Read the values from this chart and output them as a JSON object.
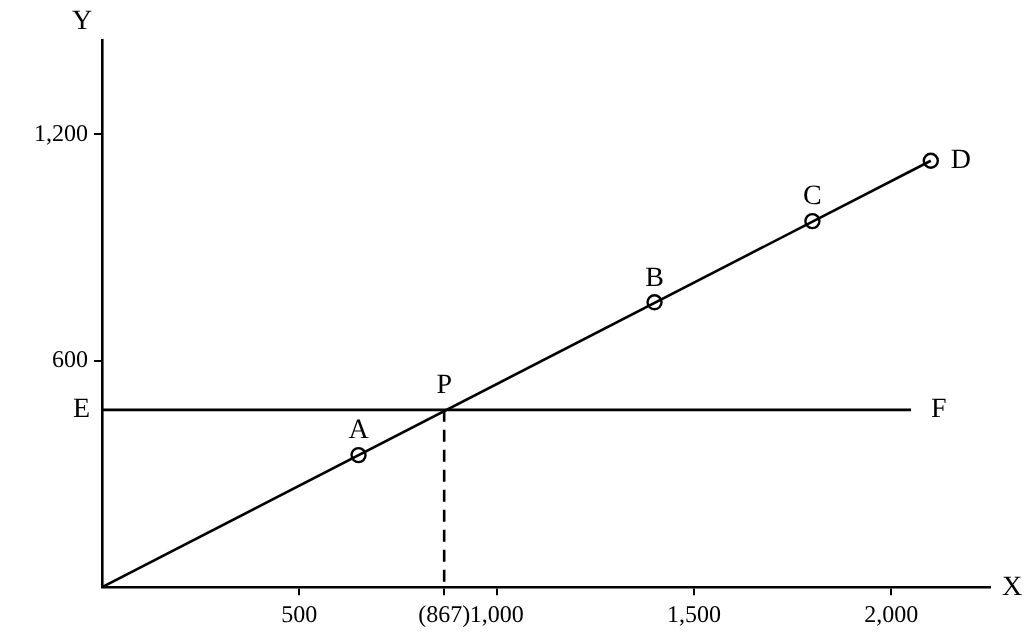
{
  "chart_data": {
    "type": "line",
    "xlabel": "X",
    "ylabel": "Y",
    "xlim": [
      0,
      2250
    ],
    "ylim": [
      0,
      1450
    ],
    "xticks": [
      500,
      {
        "value": 867,
        "label": "(867)"
      },
      {
        "value": 1000,
        "label": "1,000"
      },
      {
        "value": 1500,
        "label": "1,500"
      },
      {
        "value": 2000,
        "label": "2,000"
      }
    ],
    "yticks": [
      {
        "value": 600,
        "label": "600"
      },
      {
        "value": 1200,
        "label": "1,200"
      }
    ],
    "legend": false,
    "series": [
      {
        "color": "#000000",
        "x": [
          0,
          2100
        ],
        "values": [
          0,
          1130
        ],
        "marker": "none",
        "line_style": "solid"
      },
      {
        "color": "#000000",
        "x": [
          0,
          2050
        ],
        "values": [
          470,
          470
        ],
        "marker": "none",
        "line_style": "solid"
      },
      {
        "color": "#000000",
        "x": [
          867,
          867
        ],
        "values": [
          470,
          0
        ],
        "marker": "none",
        "line_style": "dashed"
      },
      {
        "type": "scatter",
        "color": "#000000",
        "x": [
          650,
          1400,
          1800,
          2100
        ],
        "values": [
          350,
          755,
          970,
          1130
        ],
        "marker": "circle"
      }
    ],
    "annotations": [
      {
        "text": "A",
        "x": 650,
        "y": 350
      },
      {
        "text": "B",
        "x": 1400,
        "y": 755
      },
      {
        "text": "C",
        "x": 1800,
        "y": 970
      },
      {
        "text": "D",
        "x": 2100,
        "y": 1130
      },
      {
        "text": "P",
        "x": 867,
        "y": 470
      },
      {
        "text": "E",
        "x": 0,
        "y": 470
      },
      {
        "text": "F",
        "x": 2050,
        "y": 470
      }
    ]
  }
}
